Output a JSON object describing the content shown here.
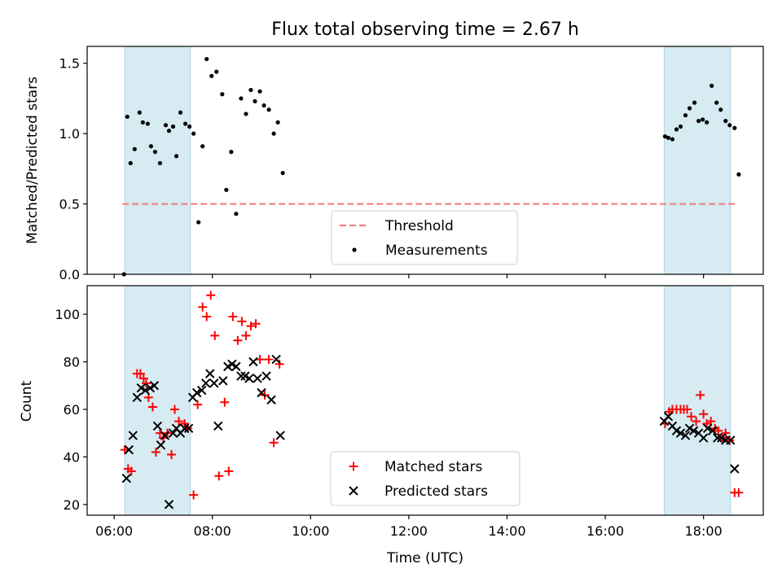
{
  "chart_data": [
    {
      "type": "scatter",
      "title": "Flux total observing time = 2.67 h",
      "xlabel": "",
      "ylabel": "Matched/Predicted stars",
      "xlim": [
        "05:27",
        "19:13"
      ],
      "ylim": [
        0,
        1.62
      ],
      "yticks": [
        "0.0",
        "0.5",
        "1.0",
        "1.5"
      ],
      "shaded_intervals": [
        [
          "06:13",
          "07:33"
        ],
        [
          "17:12",
          "18:33"
        ]
      ],
      "grid": false,
      "legend_position": "bottom-center",
      "series": [
        {
          "name": "Threshold",
          "style": "dashed-line",
          "color": "#f08080",
          "x": [
            "06:10",
            "18:40"
          ],
          "y": [
            0.5,
            0.5
          ]
        },
        {
          "name": "Measurements",
          "style": "dot",
          "color": "#000000",
          "x": [
            "06:12",
            "06:16",
            "06:20",
            "06:25",
            "06:31",
            "06:35",
            "06:41",
            "06:45",
            "06:50",
            "06:56",
            "07:03",
            "07:07",
            "07:12",
            "07:16",
            "07:21",
            "07:27",
            "07:32",
            "07:37",
            "07:43",
            "07:48",
            "07:53",
            "07:59",
            "08:05",
            "08:12",
            "08:17",
            "08:23",
            "08:29",
            "08:35",
            "08:41",
            "08:47",
            "08:52",
            "08:58",
            "09:03",
            "09:09",
            "09:15",
            "09:20",
            "09:26",
            "17:13",
            "17:17",
            "17:22",
            "17:27",
            "17:32",
            "17:38",
            "17:43",
            "17:49",
            "17:54",
            "17:59",
            "18:04",
            "18:10",
            "18:16",
            "18:21",
            "18:27",
            "18:32",
            "18:38",
            "18:43"
          ],
          "y": [
            0.0,
            1.12,
            0.79,
            0.89,
            1.15,
            1.08,
            1.07,
            0.91,
            0.87,
            0.79,
            1.06,
            1.02,
            1.05,
            0.84,
            1.15,
            1.07,
            1.05,
            1.0,
            0.37,
            0.91,
            1.53,
            1.41,
            1.44,
            1.28,
            0.6,
            0.87,
            0.43,
            1.25,
            1.14,
            1.31,
            1.23,
            1.3,
            1.2,
            1.17,
            1.0,
            1.08,
            0.72,
            0.98,
            0.97,
            0.96,
            1.03,
            1.05,
            1.13,
            1.18,
            1.22,
            1.09,
            1.1,
            1.08,
            1.34,
            1.22,
            1.17,
            1.09,
            1.06,
            1.04,
            0.71
          ]
        }
      ]
    },
    {
      "type": "scatter",
      "title": "",
      "xlabel": "Time (UTC)",
      "ylabel": "Count",
      "xlim": [
        "05:27",
        "19:13"
      ],
      "ylim": [
        15.5,
        112
      ],
      "yticks": [
        "20",
        "40",
        "60",
        "80",
        "100"
      ],
      "xticks": [
        "06:00",
        "08:00",
        "10:00",
        "12:00",
        "14:00",
        "16:00",
        "18:00"
      ],
      "shaded_intervals": [
        [
          "06:13",
          "07:33"
        ],
        [
          "17:12",
          "18:33"
        ]
      ],
      "grid": false,
      "legend_position": "bottom-center",
      "series": [
        {
          "name": "Matched stars",
          "style": "plus",
          "color": "#ff0000",
          "x": [
            "06:13",
            "06:17",
            "06:21",
            "06:28",
            "06:32",
            "06:36",
            "06:39",
            "06:42",
            "06:47",
            "06:51",
            "06:56",
            "07:00",
            "07:05",
            "07:10",
            "07:14",
            "07:19",
            "07:26",
            "07:30",
            "07:37",
            "07:42",
            "07:48",
            "07:53",
            "07:58",
            "08:03",
            "08:08",
            "08:15",
            "08:20",
            "08:25",
            "08:31",
            "08:36",
            "08:41",
            "08:47",
            "08:53",
            "08:58",
            "09:04",
            "09:09",
            "09:15",
            "09:22",
            "17:13",
            "17:18",
            "17:22",
            "17:27",
            "17:32",
            "17:36",
            "17:40",
            "17:45",
            "17:51",
            "17:56",
            "18:00",
            "18:04",
            "18:09",
            "18:14",
            "18:18",
            "18:23",
            "18:27",
            "18:32",
            "18:38",
            "18:43"
          ],
          "y": [
            43,
            35,
            34,
            75,
            75,
            73,
            71,
            65,
            61,
            42,
            50,
            48,
            50,
            41,
            60,
            55,
            54,
            52,
            24,
            62,
            103,
            99,
            108,
            91,
            32,
            63,
            34,
            99,
            89,
            97,
            91,
            95,
            96,
            81,
            66,
            81,
            46,
            79,
            54,
            59,
            60,
            60,
            60,
            60,
            60,
            57,
            55,
            66,
            58,
            54,
            55,
            52,
            51,
            48,
            50,
            47,
            25,
            25
          ]
        },
        {
          "name": "Predicted stars",
          "style": "x",
          "color": "#000000",
          "x": [
            "06:15",
            "06:18",
            "06:23",
            "06:28",
            "06:33",
            "06:38",
            "06:44",
            "06:49",
            "06:53",
            "06:57",
            "07:02",
            "07:07",
            "07:12",
            "07:16",
            "07:21",
            "07:26",
            "07:31",
            "07:36",
            "07:41",
            "07:47",
            "07:52",
            "07:57",
            "08:02",
            "08:07",
            "08:13",
            "08:19",
            "08:24",
            "08:29",
            "08:35",
            "08:40",
            "08:45",
            "08:50",
            "08:55",
            "09:00",
            "09:06",
            "09:12",
            "09:18",
            "09:23",
            "17:12",
            "17:17",
            "17:22",
            "17:27",
            "17:32",
            "17:38",
            "17:43",
            "17:48",
            "17:54",
            "18:00",
            "18:05",
            "18:11",
            "18:17",
            "18:22",
            "18:27",
            "18:33",
            "18:38"
          ],
          "y": [
            31,
            43,
            49,
            65,
            69,
            68,
            69,
            70,
            53,
            45,
            49,
            20,
            50,
            52,
            50,
            52,
            52,
            65,
            67,
            68,
            71,
            75,
            71,
            53,
            72,
            78,
            79,
            78,
            74,
            74,
            73,
            80,
            73,
            67,
            74,
            64,
            81,
            49,
            55,
            57,
            53,
            51,
            50,
            49,
            52,
            51,
            50,
            48,
            52,
            51,
            48,
            48,
            47,
            47,
            35
          ]
        }
      ]
    }
  ]
}
